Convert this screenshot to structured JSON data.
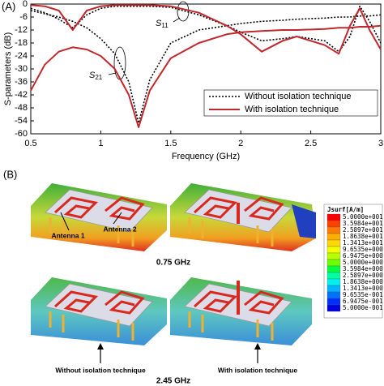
{
  "panel_a_label": "(A)",
  "chart_data": {
    "type": "line",
    "x": [
      0.5,
      0.6,
      0.7,
      0.8,
      0.9,
      1.0,
      1.1,
      1.2,
      1.27,
      1.35,
      1.5,
      1.7,
      1.9,
      2.0,
      2.15,
      2.3,
      2.4,
      2.6,
      2.7,
      2.78,
      2.85,
      2.92,
      3.0
    ],
    "xlim": [
      0.5,
      3
    ],
    "xticks": [
      0.5,
      1,
      1.5,
      2,
      2.5,
      3
    ],
    "ylim": [
      -60,
      0
    ],
    "yticks": [
      0,
      -6,
      -12,
      -18,
      -24,
      -30,
      -36,
      -42,
      -48,
      -54,
      -60
    ],
    "xlabel": "Frequency (GHz)",
    "ylabel": "S-parameters (dB)",
    "annotations": [
      "S11",
      "S21"
    ],
    "series": [
      {
        "name": "Without isolation technique",
        "color": "#000000",
        "dash": true,
        "curves": [
          {
            "values": [
              -2,
              -4,
              -7,
              -11,
              -5,
              -2,
              -1,
              -1,
              -1,
              -1,
              -1.5,
              -5,
              -10,
              -13,
              -17,
              -16,
              -15,
              -17,
              -22,
              -15,
              -1,
              -8,
              -18
            ]
          },
          {
            "values": [
              -3,
              -4.5,
              -6,
              -8,
              -11,
              -16,
              -23,
              -36,
              -55,
              -35,
              -18,
              -12,
              -10,
              -9,
              -8,
              -7.5,
              -7,
              -6.5,
              -6,
              -6,
              -5.5,
              -5.5,
              -5
            ]
          }
        ]
      },
      {
        "name": "With isolation technique",
        "color": "#c0282d",
        "dash": false,
        "curves": [
          {
            "values": [
              -0.5,
              -1,
              -3,
              -12,
              -3,
              -1,
              -0.5,
              -0.5,
              -0.5,
              -0.5,
              -1,
              -4,
              -10,
              -14,
              -22,
              -17,
              -15,
              -19,
              -23,
              -10,
              -2,
              -12,
              -21
            ]
          },
          {
            "values": [
              -40,
              -28,
              -22,
              -20,
              -21,
              -24,
              -30,
              -42,
              -57,
              -40,
              -25,
              -18,
              -14,
              -13,
              -12.5,
              -12,
              -12,
              -11.5,
              -11,
              -11,
              -10.5,
              -10.5,
              -10
            ]
          }
        ]
      }
    ]
  },
  "figure_b": {
    "panel_label": "(B)",
    "antenna_1": "Antenna 1",
    "antenna_2": "Antenna 2",
    "freq_1": "0.75 GHz",
    "freq_2": "2.45 GHz",
    "without": "Without isolation technique",
    "with": "With isolation technique",
    "colorbar": {
      "title": "Jsurf[A/m]",
      "ticks": [
        "5.0000e+001",
        "3.5984e+001",
        "2.5897e+001",
        "1.8638e+001",
        "1.3413e+001",
        "9.6535e+000",
        "6.9475e+000",
        "5.0000e+000",
        "3.5984e+000",
        "2.5897e+000",
        "1.8638e+000",
        "1.3413e+000",
        "9.6535e-001",
        "6.9475e-001",
        "5.0000e-001"
      ]
    }
  }
}
